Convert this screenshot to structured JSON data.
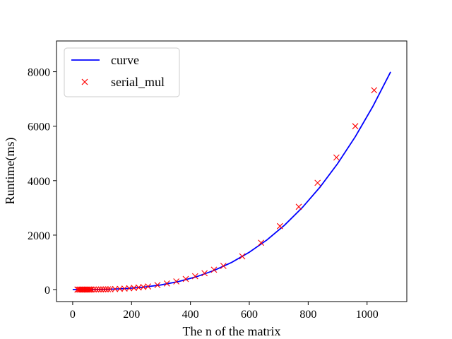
{
  "chart_data": {
    "type": "line",
    "xlabel": "The n of the matrix",
    "ylabel": "Runtime(ms)",
    "xlim": [
      -55,
      1135
    ],
    "ylim": [
      -440,
      9130
    ],
    "xticks": [
      0,
      200,
      400,
      600,
      800,
      1000
    ],
    "yticks": [
      0,
      2000,
      4000,
      6000,
      8000
    ],
    "xtick_labels": [
      "0",
      "200",
      "400",
      "600",
      "800",
      "1000"
    ],
    "ytick_labels": [
      "0",
      "2000",
      "4000",
      "6000",
      "8000"
    ],
    "grid": false,
    "legend": "top-left",
    "series": [
      {
        "name": "curve",
        "style": "line",
        "color": "#0000ff",
        "x": [
          0,
          60,
          120,
          180,
          240,
          300,
          360,
          420,
          480,
          540,
          600,
          660,
          720,
          780,
          840,
          900,
          960,
          1020,
          1080
        ],
        "y": [
          0,
          1,
          11,
          37,
          88,
          171,
          296,
          470,
          702,
          999,
          1371,
          1824,
          2369,
          3011,
          3761,
          4626,
          5614,
          6733,
          7993
        ]
      },
      {
        "name": "serial_mul",
        "style": "marker-x",
        "color": "#ff0000",
        "x": [
          16,
          20,
          24,
          28,
          32,
          36,
          40,
          44,
          48,
          52,
          56,
          60,
          64,
          72,
          80,
          88,
          96,
          104,
          112,
          120,
          128,
          144,
          160,
          176,
          192,
          208,
          224,
          240,
          256,
          288,
          320,
          352,
          384,
          416,
          448,
          480,
          512,
          576,
          640,
          704,
          768,
          832,
          896,
          960,
          1024
        ],
        "y": [
          0,
          0,
          0,
          0,
          0,
          0,
          1,
          1,
          1,
          1,
          1,
          1,
          2,
          3,
          4,
          5,
          6,
          7,
          9,
          11,
          14,
          20,
          28,
          37,
          49,
          61,
          77,
          95,
          115,
          165,
          225,
          300,
          390,
          490,
          600,
          730,
          870,
          1220,
          1720,
          2330,
          3040,
          3920,
          4850,
          6000,
          7320
        ]
      }
    ]
  }
}
